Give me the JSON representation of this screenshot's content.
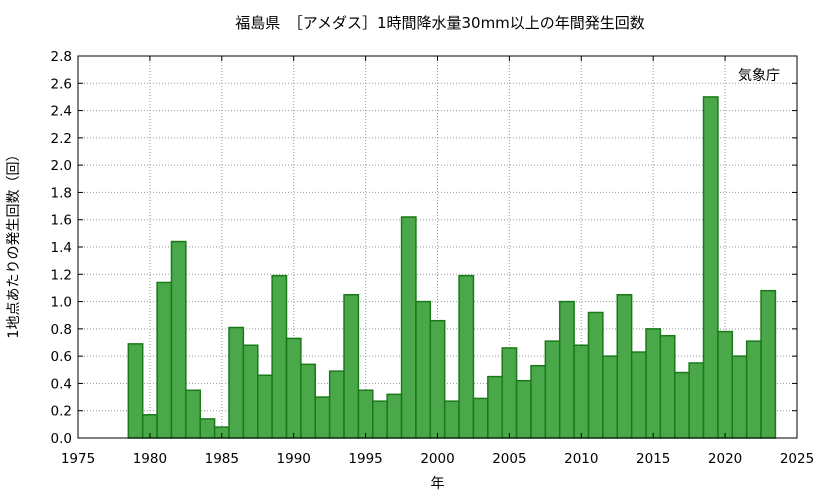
{
  "chart_data": {
    "type": "bar",
    "title": "福島県　［アメダス］1時間降水量30mm以上の年間発生回数",
    "xlabel": "年",
    "ylabel": "1地点あたりの発生回数（回）",
    "annotation": "気象庁",
    "bar_color": "#4aa84a",
    "bar_edge_color": "#1a7a1a",
    "grid": true,
    "xlim": [
      1975,
      2025
    ],
    "ylim": [
      0,
      2.8
    ],
    "x_ticks": [
      "1975",
      "1980",
      "1985",
      "1990",
      "1995",
      "2000",
      "2005",
      "2010",
      "2015",
      "2020",
      "2025"
    ],
    "y_ticks": [
      "0.0",
      "0.2",
      "0.4",
      "0.6",
      "0.8",
      "1.0",
      "1.2",
      "1.4",
      "1.6",
      "1.8",
      "2.0",
      "2.2",
      "2.4",
      "2.6",
      "2.8"
    ],
    "categories": [
      1979,
      1980,
      1981,
      1982,
      1983,
      1984,
      1985,
      1986,
      1987,
      1988,
      1989,
      1990,
      1991,
      1992,
      1993,
      1994,
      1995,
      1996,
      1997,
      1998,
      1999,
      2000,
      2001,
      2002,
      2003,
      2004,
      2005,
      2006,
      2007,
      2008,
      2009,
      2010,
      2011,
      2012,
      2013,
      2014,
      2015,
      2016,
      2017,
      2018,
      2019,
      2020,
      2021,
      2022,
      2023
    ],
    "values": [
      0.69,
      0.17,
      1.14,
      1.44,
      0.35,
      0.14,
      0.08,
      0.81,
      0.68,
      0.46,
      1.19,
      0.73,
      0.54,
      0.3,
      0.49,
      1.05,
      0.35,
      0.27,
      0.32,
      1.62,
      1.0,
      0.86,
      0.27,
      1.19,
      0.29,
      0.45,
      0.66,
      0.42,
      0.53,
      0.71,
      1.0,
      0.68,
      0.92,
      0.6,
      1.05,
      0.63,
      0.8,
      0.75,
      0.48,
      0.55,
      2.5,
      0.78,
      0.6,
      0.71,
      1.08
    ]
  }
}
